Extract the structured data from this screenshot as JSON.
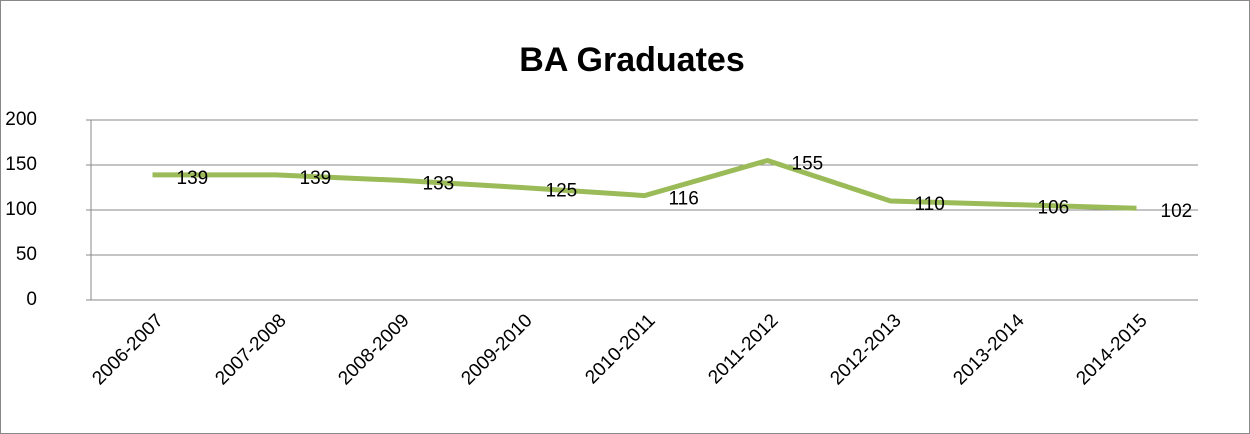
{
  "chart_data": {
    "type": "line",
    "title": "BA Graduates",
    "categories": [
      "2006-2007",
      "2007-2008",
      "2008-2009",
      "2009-2010",
      "2010-2011",
      "2011-2012",
      "2012-2013",
      "2013-2014",
      "2014-2015"
    ],
    "values": [
      139,
      139,
      133,
      125,
      116,
      155,
      110,
      106,
      102
    ],
    "color": "#9bbb59",
    "ylim": [
      0,
      200
    ],
    "yticks": [
      0,
      50,
      100,
      150,
      200
    ],
    "grid": true
  }
}
